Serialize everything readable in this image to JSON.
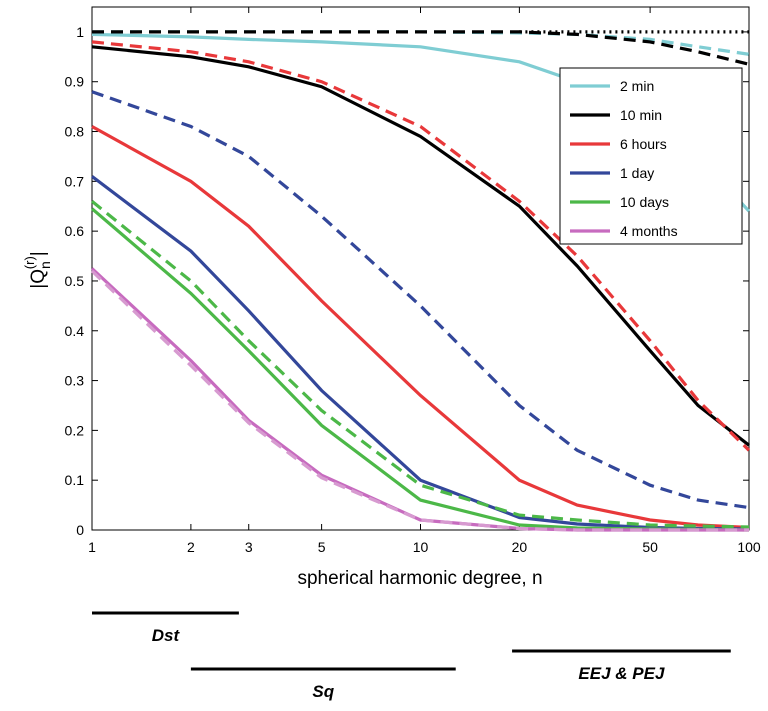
{
  "chart_data": {
    "type": "line",
    "x_label": "spherical harmonic degree, n",
    "y_label": {
      "base": "|Q",
      "sub": "n",
      "sup": "(r)",
      "end": "|"
    },
    "x": [
      1,
      2,
      3,
      5,
      10,
      20,
      30,
      50,
      70,
      100
    ],
    "xlog": true,
    "xlim": [
      1,
      100
    ],
    "xticks": [
      1,
      2,
      3,
      5,
      10,
      20,
      50,
      100
    ],
    "ylim": [
      0,
      1.05
    ],
    "yticks": [
      0,
      0.1,
      0.2,
      0.3,
      0.4,
      0.5,
      0.6,
      0.7,
      0.8,
      0.9,
      1
    ],
    "legend": "right",
    "series": [
      {
        "name": "2 min",
        "color": "#7fcdd3",
        "dash": "solid",
        "values": [
          0.995,
          0.99,
          0.985,
          0.98,
          0.97,
          0.94,
          0.9,
          0.84,
          0.75,
          0.64
        ]
      },
      {
        "color": "#7fcdd3",
        "dash": "dashed",
        "values": [
          1,
          1,
          1,
          1,
          1,
          0.998,
          0.995,
          0.985,
          0.97,
          0.955
        ]
      },
      {
        "name": "10 min",
        "color": "#000000",
        "dash": "solid",
        "values": [
          0.97,
          0.95,
          0.93,
          0.89,
          0.79,
          0.65,
          0.53,
          0.36,
          0.25,
          0.17
        ]
      },
      {
        "color": "#000000",
        "dash": "dashed",
        "values": [
          1,
          1,
          1,
          1,
          1,
          1,
          0.995,
          0.98,
          0.96,
          0.935
        ]
      },
      {
        "color": "#000000",
        "dash": "dotted",
        "values": [
          null,
          null,
          null,
          null,
          null,
          1,
          1,
          1,
          1,
          1
        ]
      },
      {
        "name": "6 hours",
        "color": "#e8383a",
        "dash": "solid",
        "values": [
          0.81,
          0.7,
          0.61,
          0.46,
          0.27,
          0.1,
          0.05,
          0.02,
          0.01,
          0.005
        ]
      },
      {
        "color": "#e8383a",
        "dash": "dashed",
        "values": [
          0.98,
          0.96,
          0.94,
          0.9,
          0.81,
          0.66,
          0.55,
          0.38,
          0.26,
          0.16
        ]
      },
      {
        "name": "1 day",
        "color": "#33479a",
        "dash": "solid",
        "values": [
          0.71,
          0.56,
          0.44,
          0.28,
          0.1,
          0.025,
          0.012,
          0.005,
          0.003,
          0.002
        ]
      },
      {
        "color": "#33479a",
        "dash": "dashed",
        "values": [
          0.88,
          0.81,
          0.75,
          0.63,
          0.45,
          0.25,
          0.16,
          0.09,
          0.06,
          0.045
        ]
      },
      {
        "name": "10 days",
        "color": "#4cb848",
        "dash": "solid",
        "values": [
          0.645,
          0.475,
          0.36,
          0.21,
          0.06,
          0.01,
          0.004,
          0.002,
          0.001,
          0
        ]
      },
      {
        "color": "#4cb848",
        "dash": "dashed",
        "values": [
          0.66,
          0.5,
          0.38,
          0.24,
          0.09,
          0.03,
          0.02,
          0.01,
          0.008,
          0.006
        ]
      },
      {
        "name": "4 months",
        "color": "#c76bbf",
        "dash": "solid",
        "values": [
          0.525,
          0.34,
          0.22,
          0.11,
          0.02,
          0.003,
          0,
          0,
          0,
          0
        ]
      },
      {
        "color": "#d79ad0",
        "dash": "dashed",
        "values": [
          0.52,
          0.33,
          0.215,
          0.105,
          0.02,
          0.003,
          0,
          0,
          0,
          0
        ]
      }
    ],
    "ranges": [
      {
        "label": "Dst",
        "x": [
          1,
          2.8
        ]
      },
      {
        "label": "Sq",
        "x": [
          2,
          12.8
        ]
      },
      {
        "label": "EEJ & PEJ",
        "x": [
          19,
          88
        ]
      }
    ]
  }
}
